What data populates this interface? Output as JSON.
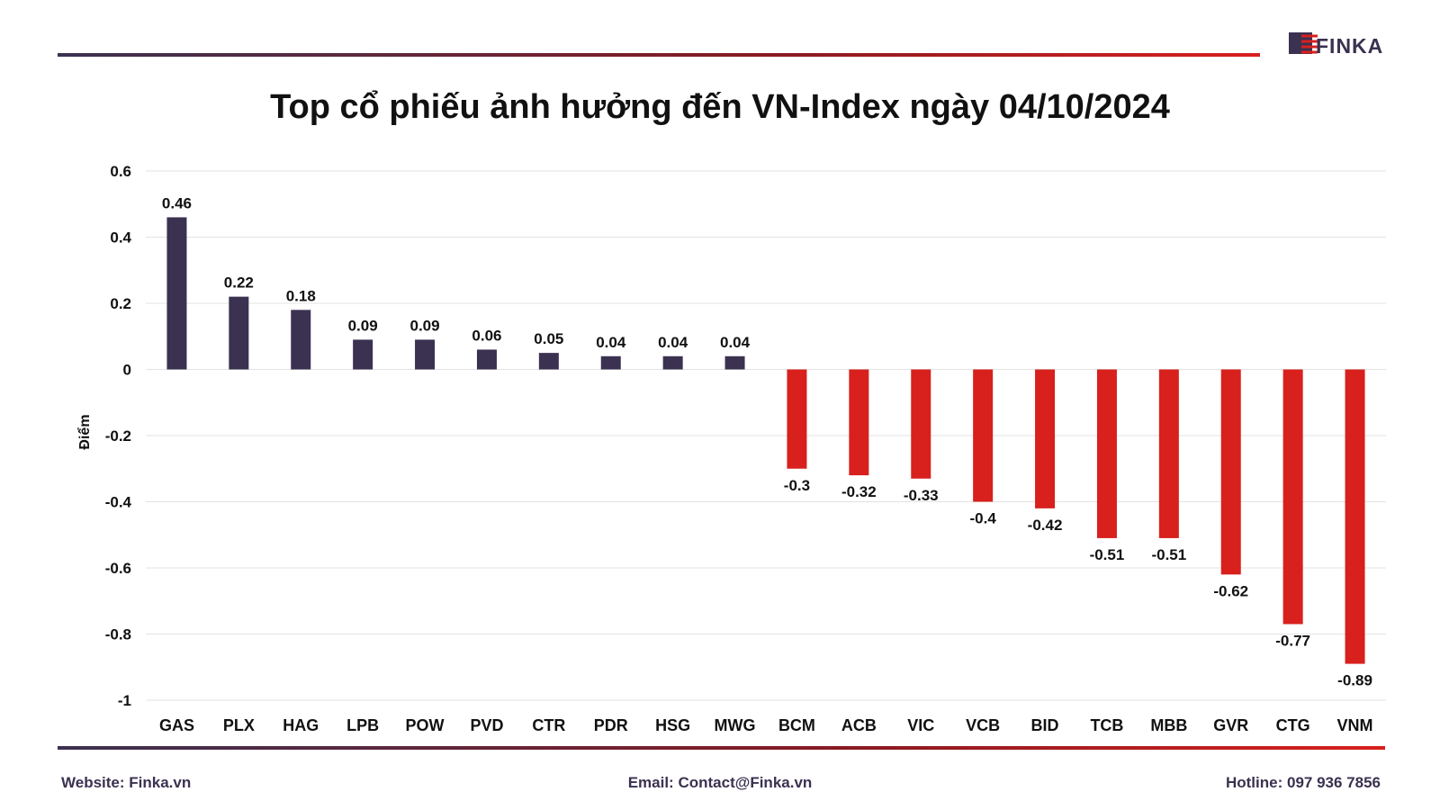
{
  "brand": {
    "logo_text": "FINKA",
    "colors": {
      "dark": "#3b3150",
      "red": "#d8201d"
    }
  },
  "title": "Top cổ phiếu ảnh hưởng đến VN-Index ngày 04/10/2024",
  "footer": {
    "website_label": "Website:",
    "website": "Finka.vn",
    "email_label": "Email:",
    "email": "Contact@Finka.vn",
    "hotline_label": "Hotline:",
    "hotline": "097 936 7856"
  },
  "chart_data": {
    "type": "bar",
    "title": "Top cổ phiếu ảnh hưởng đến VN-Index ngày 04/10/2024",
    "xlabel": "",
    "ylabel": "Điểm",
    "ylim": [
      -1,
      0.6
    ],
    "yticks": [
      0.6,
      0.4,
      0.2,
      0,
      -0.2,
      -0.4,
      -0.6,
      -0.8,
      -1
    ],
    "grid": true,
    "positive_color": "#3b3150",
    "negative_color": "#d8201d",
    "categories": [
      "GAS",
      "PLX",
      "HAG",
      "LPB",
      "POW",
      "PVD",
      "CTR",
      "PDR",
      "HSG",
      "MWG",
      "BCM",
      "ACB",
      "VIC",
      "VCB",
      "BID",
      "TCB",
      "MBB",
      "GVR",
      "CTG",
      "VNM"
    ],
    "values": [
      0.46,
      0.22,
      0.18,
      0.09,
      0.09,
      0.06,
      0.05,
      0.04,
      0.04,
      0.04,
      -0.3,
      -0.32,
      -0.33,
      -0.4,
      -0.42,
      -0.51,
      -0.51,
      -0.62,
      -0.77,
      -0.89
    ],
    "data_labels": [
      "0.46",
      "0.22",
      "0.18",
      "0.09",
      "0.09",
      "0.06",
      "0.05",
      "0.04",
      "0.04",
      "0.04",
      "-0.3",
      "-0.32",
      "-0.33",
      "-0.4",
      "-0.42",
      "-0.51",
      "-0.51",
      "-0.62",
      "-0.77",
      "-0.89"
    ]
  }
}
